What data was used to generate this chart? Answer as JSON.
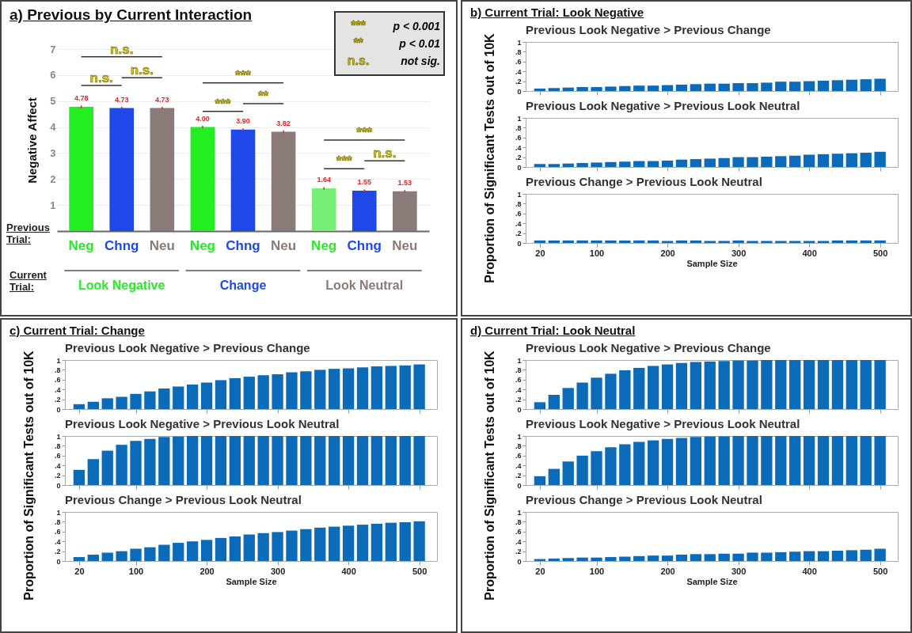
{
  "chart_data": [
    {
      "type": "bar",
      "title": "a) Previous by Current Interaction",
      "ylabel": "Negative Affect",
      "categories": [
        "Neg",
        "Chng",
        "Neu",
        "Neg",
        "Chng",
        "Neu",
        "Neg",
        "Chng",
        "Neu"
      ],
      "values": [
        4.78,
        4.73,
        4.73,
        4.0,
        3.9,
        3.82,
        1.64,
        1.55,
        1.53
      ],
      "value_labels": [
        "4.78",
        "4.73",
        "4.73",
        "4.00",
        "3.90",
        "3.82",
        "1.64",
        "1.55",
        "1.53"
      ],
      "errors": [
        0.05,
        0.05,
        0.05,
        0.05,
        0.05,
        0.05,
        0.05,
        0.05,
        0.05
      ],
      "colors": [
        "#22ee22",
        "#1f48e8",
        "#8a7a78",
        "#22ee22",
        "#1f48e8",
        "#8a7a78",
        "#77ee77",
        "#1f48e8",
        "#8a7a78"
      ],
      "ylim": [
        0,
        7
      ],
      "yticks": [
        1,
        2,
        3,
        4,
        5,
        6,
        7
      ],
      "grid": "y",
      "annotations": [
        "Previous Trial:",
        "Current Trial:",
        "Look Negative",
        "Change",
        "Look Neutral",
        "n.s.",
        "n.s.",
        "n.s.",
        "***",
        "**",
        "***",
        "***",
        "n.s.",
        "***",
        "***",
        "p < 0.001",
        "**",
        "p < 0.01",
        "n.s.",
        "not sig."
      ]
    },
    {
      "type": "bar",
      "title": "b) Current Trial: Look Negative",
      "subtitle": "Previous Look Negative > Previous Change",
      "tick_labels": "y",
      "color": "#0b6bb8",
      "x": [
        20,
        40,
        60,
        80,
        100,
        120,
        140,
        160,
        180,
        200,
        220,
        240,
        260,
        280,
        300,
        320,
        340,
        360,
        380,
        400,
        420,
        440,
        460,
        480,
        500
      ],
      "values": [
        0.05,
        0.06,
        0.07,
        0.08,
        0.08,
        0.09,
        0.1,
        0.11,
        0.11,
        0.12,
        0.13,
        0.14,
        0.15,
        0.15,
        0.16,
        0.16,
        0.17,
        0.19,
        0.19,
        0.2,
        0.21,
        0.22,
        0.23,
        0.24,
        0.25
      ],
      "xlim": [
        0,
        525
      ],
      "xticks": [
        20,
        100,
        200,
        300,
        400,
        500
      ],
      "ylim": [
        0,
        1
      ],
      "yticks": [
        0,
        {
          "value": 0.2,
          "label": ".2"
        },
        {
          "value": 0.4,
          "label": ".4"
        },
        {
          "value": 0.6,
          "label": ".6"
        },
        {
          "value": 0.8,
          "label": ".8"
        },
        1
      ]
    },
    {
      "type": "bar",
      "title": "Previous Look Negative > Previous Look Neutral",
      "ylabel": "Proportion of Significant Tests out of 10K",
      "tick_labels": "y",
      "color": "#0b6bb8",
      "x": [
        20,
        40,
        60,
        80,
        100,
        120,
        140,
        160,
        180,
        200,
        220,
        240,
        260,
        280,
        300,
        320,
        340,
        360,
        380,
        400,
        420,
        440,
        460,
        480,
        500
      ],
      "values": [
        0.06,
        0.06,
        0.07,
        0.08,
        0.09,
        0.1,
        0.11,
        0.12,
        0.12,
        0.13,
        0.15,
        0.16,
        0.17,
        0.18,
        0.2,
        0.2,
        0.21,
        0.22,
        0.23,
        0.25,
        0.26,
        0.27,
        0.28,
        0.29,
        0.31
      ],
      "xlim": [
        0,
        525
      ],
      "xticks": [
        20,
        100,
        200,
        300,
        400,
        500
      ],
      "ylim": [
        0,
        1
      ],
      "yticks": [
        0,
        {
          "value": 0.2,
          "label": ".2"
        },
        {
          "value": 0.4,
          "label": ".4"
        },
        {
          "value": 0.6,
          "label": ".6"
        },
        {
          "value": 0.8,
          "label": ".8"
        },
        1
      ]
    },
    {
      "type": "bar",
      "title": "Previous Change > Previous Look Neutral",
      "xlabel": "Sample Size",
      "color": "#0b6bb8",
      "x": [
        20,
        40,
        60,
        80,
        100,
        120,
        140,
        160,
        180,
        200,
        220,
        240,
        260,
        280,
        300,
        320,
        340,
        360,
        380,
        400,
        420,
        440,
        460,
        480,
        500
      ],
      "values": [
        0.05,
        0.05,
        0.05,
        0.05,
        0.05,
        0.05,
        0.05,
        0.05,
        0.05,
        0.04,
        0.05,
        0.05,
        0.04,
        0.04,
        0.05,
        0.04,
        0.04,
        0.04,
        0.04,
        0.04,
        0.04,
        0.05,
        0.05,
        0.05,
        0.05
      ],
      "xlim": [
        0,
        525
      ],
      "xticks": [
        20,
        100,
        200,
        300,
        400,
        500
      ],
      "ylim": [
        0,
        1
      ],
      "yticks": [
        0,
        {
          "value": 0.2,
          "label": ".2"
        },
        {
          "value": 0.4,
          "label": ".4"
        },
        {
          "value": 0.6,
          "label": ".6"
        },
        {
          "value": 0.8,
          "label": ".8"
        },
        1
      ]
    },
    {
      "type": "bar",
      "title": "c) Current Trial: Change",
      "subtitle": "Previous Look Negative > Previous Change",
      "tick_labels": "y",
      "color": "#0b6bb8",
      "x": [
        20,
        40,
        60,
        80,
        100,
        120,
        140,
        160,
        180,
        200,
        220,
        240,
        260,
        280,
        300,
        320,
        340,
        360,
        380,
        400,
        420,
        440,
        460,
        480,
        500
      ],
      "values": [
        0.1,
        0.15,
        0.22,
        0.25,
        0.31,
        0.36,
        0.42,
        0.46,
        0.5,
        0.54,
        0.59,
        0.63,
        0.66,
        0.69,
        0.71,
        0.75,
        0.77,
        0.8,
        0.82,
        0.83,
        0.85,
        0.87,
        0.88,
        0.89,
        0.91
      ],
      "xlim": [
        0,
        525
      ],
      "xticks": [
        20,
        100,
        200,
        300,
        400,
        500
      ],
      "ylim": [
        0,
        1
      ],
      "yticks": [
        0,
        {
          "value": 0.2,
          "label": ".2"
        },
        {
          "value": 0.4,
          "label": ".4"
        },
        {
          "value": 0.6,
          "label": ".6"
        },
        {
          "value": 0.8,
          "label": ".8"
        },
        1
      ]
    },
    {
      "type": "bar",
      "title": "Previous Look Negative > Previous Look Neutral",
      "ylabel": "Proportion of Significant Tests out of 10K",
      "tick_labels": "y",
      "color": "#0b6bb8",
      "x": [
        20,
        40,
        60,
        80,
        100,
        120,
        140,
        160,
        180,
        200,
        220,
        240,
        260,
        280,
        300,
        320,
        340,
        360,
        380,
        400,
        420,
        440,
        460,
        480,
        500
      ],
      "values": [
        0.31,
        0.53,
        0.7,
        0.82,
        0.9,
        0.94,
        0.98,
        0.99,
        1,
        1,
        1,
        1,
        1,
        1,
        1,
        1,
        1,
        1,
        1,
        1,
        1,
        1,
        1,
        1,
        1
      ],
      "xlim": [
        0,
        525
      ],
      "xticks": [
        20,
        100,
        200,
        300,
        400,
        500
      ],
      "ylim": [
        0,
        1
      ],
      "yticks": [
        0,
        {
          "value": 0.2,
          "label": ".2"
        },
        {
          "value": 0.4,
          "label": ".4"
        },
        {
          "value": 0.6,
          "label": ".6"
        },
        {
          "value": 0.8,
          "label": ".8"
        },
        1
      ]
    },
    {
      "type": "bar",
      "title": "Previous Change > Previous Look Neutral",
      "xlabel": "Sample Size",
      "color": "#0b6bb8",
      "x": [
        20,
        40,
        60,
        80,
        100,
        120,
        140,
        160,
        180,
        200,
        220,
        240,
        260,
        280,
        300,
        320,
        340,
        360,
        380,
        400,
        420,
        440,
        460,
        480,
        500
      ],
      "values": [
        0.08,
        0.13,
        0.17,
        0.2,
        0.25,
        0.28,
        0.33,
        0.37,
        0.4,
        0.43,
        0.47,
        0.5,
        0.54,
        0.57,
        0.59,
        0.62,
        0.65,
        0.68,
        0.7,
        0.72,
        0.74,
        0.76,
        0.78,
        0.79,
        0.81
      ],
      "xlim": [
        0,
        525
      ],
      "xticks": [
        20,
        100,
        200,
        300,
        400,
        500
      ],
      "ylim": [
        0,
        1
      ],
      "yticks": [
        0,
        {
          "value": 0.2,
          "label": ".2"
        },
        {
          "value": 0.4,
          "label": ".4"
        },
        {
          "value": 0.6,
          "label": ".6"
        },
        {
          "value": 0.8,
          "label": ".8"
        },
        1
      ]
    },
    {
      "type": "bar",
      "title": "d) Current Trial: Look Neutral",
      "subtitle": "Previous Look Negative > Previous Change",
      "tick_labels": "y",
      "color": "#0b6bb8",
      "x": [
        20,
        40,
        60,
        80,
        100,
        120,
        140,
        160,
        180,
        200,
        220,
        240,
        260,
        280,
        300,
        320,
        340,
        360,
        380,
        400,
        420,
        440,
        460,
        480,
        500
      ],
      "values": [
        0.14,
        0.29,
        0.43,
        0.54,
        0.64,
        0.72,
        0.79,
        0.84,
        0.88,
        0.91,
        0.94,
        0.96,
        0.97,
        0.98,
        0.99,
        0.99,
        1,
        1,
        1,
        1,
        1,
        1,
        1,
        1,
        1
      ],
      "xlim": [
        0,
        525
      ],
      "xticks": [
        20,
        100,
        200,
        300,
        400,
        500
      ],
      "ylim": [
        0,
        1
      ],
      "yticks": [
        0,
        {
          "value": 0.2,
          "label": ".2"
        },
        {
          "value": 0.4,
          "label": ".4"
        },
        {
          "value": 0.6,
          "label": ".6"
        },
        {
          "value": 0.8,
          "label": ".8"
        },
        1
      ]
    },
    {
      "type": "bar",
      "title": "Previous Look Negative > Previous Look Neutral",
      "ylabel": "Proportion of Significant Tests out of 10K",
      "tick_labels": "y",
      "color": "#0b6bb8",
      "x": [
        20,
        40,
        60,
        80,
        100,
        120,
        140,
        160,
        180,
        200,
        220,
        240,
        260,
        280,
        300,
        320,
        340,
        360,
        380,
        400,
        420,
        440,
        460,
        480,
        500
      ],
      "values": [
        0.18,
        0.33,
        0.48,
        0.6,
        0.69,
        0.77,
        0.83,
        0.88,
        0.91,
        0.94,
        0.96,
        0.98,
        0.99,
        0.99,
        1,
        1,
        1,
        1,
        1,
        1,
        1,
        1,
        1,
        1,
        1
      ],
      "xlim": [
        0,
        525
      ],
      "xticks": [
        20,
        100,
        200,
        300,
        400,
        500
      ],
      "ylim": [
        0,
        1
      ],
      "yticks": [
        0,
        {
          "value": 0.2,
          "label": ".2"
        },
        {
          "value": 0.4,
          "label": ".4"
        },
        {
          "value": 0.6,
          "label": ".6"
        },
        {
          "value": 0.8,
          "label": ".8"
        },
        1
      ]
    },
    {
      "type": "bar",
      "title": "Previous Change > Previous Look Neutral",
      "xlabel": "Sample Size",
      "color": "#0b6bb8",
      "x": [
        20,
        40,
        60,
        80,
        100,
        120,
        140,
        160,
        180,
        200,
        220,
        240,
        260,
        280,
        300,
        320,
        340,
        360,
        380,
        400,
        420,
        440,
        460,
        480,
        500
      ],
      "values": [
        0.04,
        0.05,
        0.06,
        0.07,
        0.07,
        0.08,
        0.09,
        0.1,
        0.11,
        0.11,
        0.13,
        0.14,
        0.14,
        0.15,
        0.15,
        0.17,
        0.17,
        0.18,
        0.19,
        0.2,
        0.2,
        0.21,
        0.22,
        0.23,
        0.25
      ],
      "xlim": [
        0,
        525
      ],
      "xticks": [
        20,
        100,
        200,
        300,
        400,
        500
      ],
      "ylim": [
        0,
        1
      ],
      "yticks": [
        0,
        {
          "value": 0.2,
          "label": ".2"
        },
        {
          "value": 0.4,
          "label": ".4"
        },
        {
          "value": 0.6,
          "label": ".6"
        },
        {
          "value": 0.8,
          "label": ".8"
        },
        1
      ]
    }
  ]
}
